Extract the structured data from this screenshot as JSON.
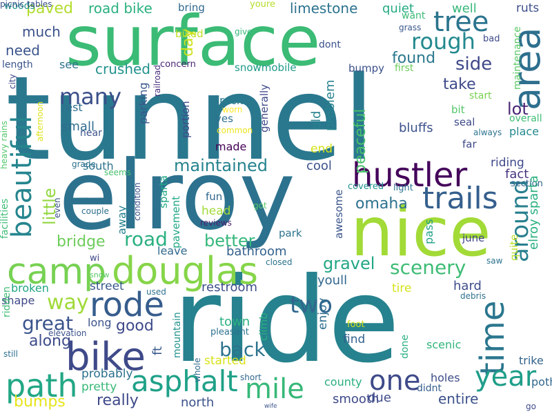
{
  "words": [
    {
      "text": "tunnel",
      "color": "#2a788e"
    },
    {
      "text": "ride",
      "color": "#26828e"
    },
    {
      "text": "elroy",
      "color": "#2c728e"
    },
    {
      "text": "surface",
      "color": "#3bbb75"
    },
    {
      "text": "nice",
      "color": "#a2da37"
    },
    {
      "text": "camp",
      "color": "#77d153"
    },
    {
      "text": "douglas",
      "color": "#86d549"
    },
    {
      "text": "hustler",
      "color": "#44015a"
    },
    {
      "text": "bike",
      "color": "#3f4a89"
    },
    {
      "text": "rode",
      "color": "#365d8d"
    },
    {
      "text": "path",
      "color": "#22a785"
    },
    {
      "text": "asphalt",
      "color": "#1fa188"
    },
    {
      "text": "mile",
      "color": "#37b878"
    },
    {
      "text": "one",
      "color": "#3e4a89"
    },
    {
      "text": "time",
      "color": "#2a768e"
    },
    {
      "text": "year",
      "color": "#1f9e89"
    },
    {
      "text": "trails",
      "color": "#355f8d"
    },
    {
      "text": "area",
      "color": "#2e6f8e"
    },
    {
      "text": "tree",
      "color": "#2b748e"
    },
    {
      "text": "rough",
      "color": "#23898e"
    },
    {
      "text": "beautiful",
      "color": "#25858e"
    },
    {
      "text": "maintained",
      "color": "#25838e"
    },
    {
      "text": "many",
      "color": "#3c4f8a"
    },
    {
      "text": "around",
      "color": "#277f8e"
    },
    {
      "text": "two",
      "color": "#31668e"
    },
    {
      "text": "scenery",
      "color": "#3dbc74"
    },
    {
      "text": "gravel",
      "color": "#22a785"
    },
    {
      "text": "way",
      "color": "#a0da39"
    },
    {
      "text": "great",
      "color": "#3a548c"
    },
    {
      "text": "back",
      "color": "#2c738e"
    },
    {
      "text": "road",
      "color": "#2ab07f"
    },
    {
      "text": "better",
      "color": "#36b77b"
    },
    {
      "text": "bridge",
      "color": "#6ccd5a"
    },
    {
      "text": "omaha",
      "color": "#2d718e"
    },
    {
      "text": "lot",
      "color": "#482576"
    },
    {
      "text": "side",
      "color": "#3f4889"
    },
    {
      "text": "take",
      "color": "#3e4989"
    },
    {
      "text": "found",
      "color": "#2a778e"
    },
    {
      "text": "limestone",
      "color": "#2c728e"
    },
    {
      "text": "road bike",
      "color": "#2ab07f"
    },
    {
      "text": "crushed",
      "color": "#21918c"
    },
    {
      "text": "much",
      "color": "#3b518b"
    },
    {
      "text": "need",
      "color": "#3a548c"
    },
    {
      "text": "paved",
      "color": "#b2dd2d"
    },
    {
      "text": "woods",
      "color": "#20928c"
    },
    {
      "text": "quiet",
      "color": "#24aa83"
    },
    {
      "text": "well",
      "color": "#35b779"
    },
    {
      "text": "ruts",
      "color": "#3d4e8a"
    },
    {
      "text": "bring",
      "color": "#31688e"
    },
    {
      "text": "youre",
      "color": "#b5de2b"
    },
    {
      "text": "want",
      "color": "#3aba76"
    },
    {
      "text": "grass",
      "color": "#39558c"
    },
    {
      "text": "dont",
      "color": "#3a538b"
    },
    {
      "text": "first",
      "color": "#6ccd5a"
    },
    {
      "text": "bumpy",
      "color": "#3b518b"
    },
    {
      "text": "seal",
      "color": "#3e4a89"
    },
    {
      "text": "bit",
      "color": "#52c569"
    },
    {
      "text": "peaceful",
      "color": "#4ac16d"
    },
    {
      "text": "snowmobile",
      "color": "#1f9a8a"
    },
    {
      "text": "day",
      "color": "#d0e11c"
    },
    {
      "text": "biked",
      "color": "#c2df23"
    },
    {
      "text": "see",
      "color": "#2d718e"
    },
    {
      "text": "length",
      "color": "#3a548c"
    },
    {
      "text": "concern",
      "color": "#482475"
    },
    {
      "text": "rest",
      "color": "#2e6e8e"
    },
    {
      "text": "small",
      "color": "#2f6c8e"
    },
    {
      "text": "near",
      "color": "#3b528b"
    },
    {
      "text": "parking",
      "color": "#39568c"
    },
    {
      "text": "portion",
      "color": "#3e4c8a"
    },
    {
      "text": "railroad",
      "color": "#472d7b"
    },
    {
      "text": "yes",
      "color": "#2d708e"
    },
    {
      "text": "rock",
      "color": "#287c8e"
    },
    {
      "text": "worn",
      "color": "#fde725"
    },
    {
      "text": "common",
      "color": "#ece51b"
    },
    {
      "text": "made",
      "color": "#440154"
    },
    {
      "text": "generally",
      "color": "#3e4989"
    },
    {
      "text": "end",
      "color": "#d5e21a"
    },
    {
      "text": "old",
      "color": "#26828e"
    },
    {
      "text": "problem",
      "color": "#26828e"
    },
    {
      "text": "bluffs",
      "color": "#3c508b"
    },
    {
      "text": "far",
      "color": "#3e4a89"
    },
    {
      "text": "place",
      "color": "#23898e"
    },
    {
      "text": "maintenance",
      "color": "#58c765"
    },
    {
      "text": "start",
      "color": "#7ad151"
    },
    {
      "text": "always",
      "color": "#2c738e"
    },
    {
      "text": "overall",
      "color": "#3dbc74"
    },
    {
      "text": "give",
      "color": "#35b779"
    },
    {
      "text": "bad",
      "color": "#3e4a89"
    },
    {
      "text": "south",
      "color": "#2c738e"
    },
    {
      "text": "cool",
      "color": "#3b518b"
    },
    {
      "text": "riding",
      "color": "#3e4989"
    },
    {
      "text": "fact",
      "color": "#46337f"
    },
    {
      "text": "light",
      "color": "#2c728e"
    },
    {
      "text": "section",
      "color": "#33628d"
    },
    {
      "text": "covered",
      "color": "#21918c"
    },
    {
      "text": "sparta",
      "color": "#22a785"
    },
    {
      "text": "elroy sparta",
      "color": "#2ab07f"
    },
    {
      "text": "quite",
      "color": "#bddf26"
    },
    {
      "text": "little",
      "color": "#93d741"
    },
    {
      "text": "away",
      "color": "#26828e"
    },
    {
      "text": "fun",
      "color": "#31678e"
    },
    {
      "text": "head",
      "color": "#a0da39"
    },
    {
      "text": "pavement",
      "color": "#22a785"
    },
    {
      "text": "condition",
      "color": "#3b528b"
    },
    {
      "text": "got",
      "color": "#58c765"
    },
    {
      "text": "reviews",
      "color": "#481f70"
    },
    {
      "text": "seems",
      "color": "#4ac16d"
    },
    {
      "text": "grade",
      "color": "#2c728e"
    },
    {
      "text": "couple",
      "color": "#2d708e"
    },
    {
      "text": "even",
      "color": "#3b528b"
    },
    {
      "text": "facilities",
      "color": "#3dbc74"
    },
    {
      "text": "heavy rains",
      "color": "#52c569"
    },
    {
      "text": "city",
      "color": "#3e4989"
    },
    {
      "text": "afternoon",
      "color": "#dde318"
    },
    {
      "text": "park",
      "color": "#2c728e"
    },
    {
      "text": "awesome",
      "color": "#3a548c"
    },
    {
      "text": "pass",
      "color": "#1fa188"
    },
    {
      "text": "june",
      "color": "#404387"
    },
    {
      "text": "wi",
      "color": "#3f4788"
    },
    {
      "text": "leave",
      "color": "#30698e"
    },
    {
      "text": "bathroom",
      "color": "#34618d"
    },
    {
      "text": "closed",
      "color": "#2c728e"
    },
    {
      "text": "youll",
      "color": "#31668e"
    },
    {
      "text": "tire",
      "color": "#d5e21a"
    },
    {
      "text": "hard",
      "color": "#3e4c8a"
    },
    {
      "text": "snow",
      "color": "#58c765"
    },
    {
      "text": "restroom",
      "color": "#3d4d8a"
    },
    {
      "text": "street",
      "color": "#38588c"
    },
    {
      "text": "used",
      "color": "#2d708e"
    },
    {
      "text": "saw",
      "color": "#2c728e"
    },
    {
      "text": "debris",
      "color": "#2d718e"
    },
    {
      "text": "broken",
      "color": "#21a585"
    },
    {
      "text": "shape",
      "color": "#3f4788"
    },
    {
      "text": "ridden",
      "color": "#3dbc74"
    },
    {
      "text": "mountain",
      "color": "#21918c"
    },
    {
      "text": "town",
      "color": "#2ab07f"
    },
    {
      "text": "climb",
      "color": "#29af7f"
    },
    {
      "text": "enjoy",
      "color": "#2e6d8e"
    },
    {
      "text": "long",
      "color": "#3b528b"
    },
    {
      "text": "good",
      "color": "#3e4a89"
    },
    {
      "text": "ft",
      "color": "#38598c"
    },
    {
      "text": "along",
      "color": "#3e4c8a"
    },
    {
      "text": "elevation",
      "color": "#3b528b"
    },
    {
      "text": "pleasant",
      "color": "#2d718e"
    },
    {
      "text": "foot",
      "color": "#d2e21b"
    },
    {
      "text": "find",
      "color": "#34618d"
    },
    {
      "text": "done",
      "color": "#2ab07f"
    },
    {
      "text": "scenic",
      "color": "#31b57b"
    },
    {
      "text": "trike",
      "color": "#33638d"
    },
    {
      "text": "still",
      "color": "#2d708e"
    },
    {
      "text": "started",
      "color": "#d8e219"
    },
    {
      "text": "whole",
      "color": "#30698e"
    },
    {
      "text": "probably",
      "color": "#2d708e"
    },
    {
      "text": "pretty",
      "color": "#37b878"
    },
    {
      "text": "really",
      "color": "#3e4989"
    },
    {
      "text": "north",
      "color": "#3b518b"
    },
    {
      "text": "short",
      "color": "#31688e"
    },
    {
      "text": "bumps",
      "color": "#e7e419"
    },
    {
      "text": "smooth",
      "color": "#3e4989"
    },
    {
      "text": "due",
      "color": "#3e4c8a"
    },
    {
      "text": "county",
      "color": "#2ab07f"
    },
    {
      "text": "holes",
      "color": "#3d4d8a"
    },
    {
      "text": "didnt",
      "color": "#355f8d"
    },
    {
      "text": "entire",
      "color": "#3b518b"
    },
    {
      "text": "potholes",
      "color": "#31678e"
    },
    {
      "text": "go",
      "color": "#3e4a89"
    },
    {
      "text": "wife",
      "color": "#3a548c"
    },
    {
      "text": "picnic tables",
      "color": "#3b518b"
    }
  ]
}
